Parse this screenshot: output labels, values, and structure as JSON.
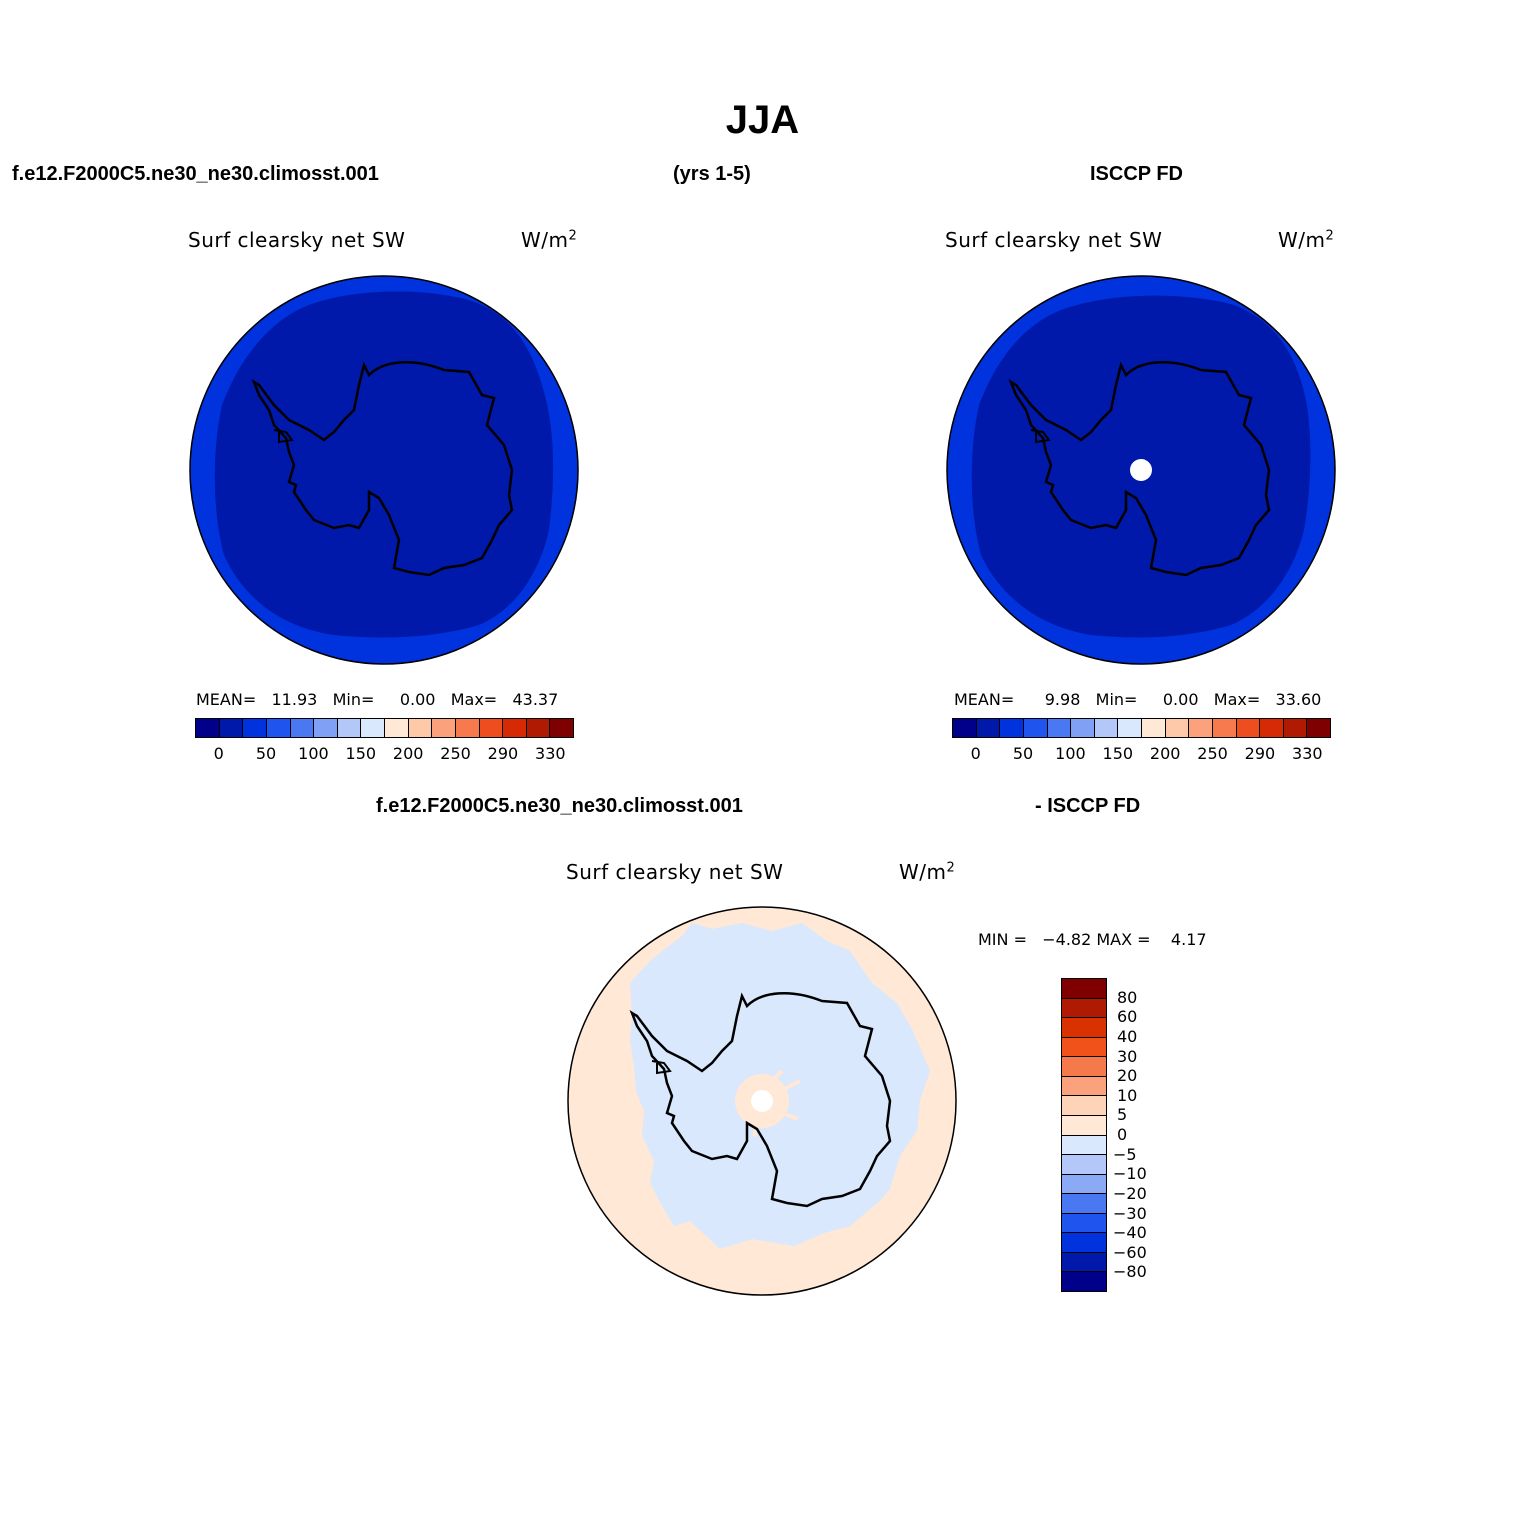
{
  "title": "JJA",
  "header": {
    "case_name": "f.e12.F2000C5.ne30_ne30.climosst.001",
    "years": "(yrs 1-5)",
    "obs_name": "ISCCP FD"
  },
  "panels": {
    "left": {
      "variable": "Surf clearsky net SW",
      "units_base": "W/m",
      "units_exp": "2",
      "mean_label": "MEAN=",
      "mean": "11.93",
      "min_label": "Min=",
      "min": "0.00",
      "max_label": "Max=",
      "max": "43.37"
    },
    "right": {
      "variable": "Surf clearsky net SW",
      "units_base": "W/m",
      "units_exp": "2",
      "mean_label": "MEAN=",
      "mean": "9.98",
      "min_label": "Min=",
      "min": "0.00",
      "max_label": "Max=",
      "max": "33.60"
    },
    "diff": {
      "title_left": "f.e12.F2000C5.ne30_ne30.climosst.001",
      "title_right": "- ISCCP FD",
      "variable": "Surf clearsky net SW",
      "units_base": "W/m",
      "units_exp": "2",
      "min_label": "MIN =",
      "min": "−4.82",
      "max_label": "MAX =",
      "max": "4.17"
    }
  },
  "colorbar_main": {
    "colors": [
      "#00008b",
      "#0019aa",
      "#0033dd",
      "#1f55ee",
      "#4a78f2",
      "#7fa0f5",
      "#b3c8f8",
      "#d9e8fc",
      "#ffe8d5",
      "#fdc9a8",
      "#fba27c",
      "#f77a4f",
      "#ee4d20",
      "#d62a06",
      "#b01a02",
      "#7f0000"
    ],
    "ticks": [
      "0",
      "50",
      "100",
      "150",
      "200",
      "250",
      "290",
      "330"
    ]
  },
  "colorbar_diff": {
    "colors": [
      "#7f0000",
      "#b01a02",
      "#d93200",
      "#f0521a",
      "#f47a4c",
      "#fba27c",
      "#fdd4b8",
      "#ffe8d5",
      "#d9e8fc",
      "#b3c8f8",
      "#8aaaf5",
      "#4a78f2",
      "#1f55ee",
      "#0033dd",
      "#0019aa",
      "#00008b"
    ],
    "ticks": [
      "80",
      "60",
      "40",
      "30",
      "20",
      "10",
      "5",
      "0",
      "−5",
      "−10",
      "−20",
      "−30",
      "−40",
      "−60",
      "−80"
    ]
  },
  "map_colors": {
    "abs_outer": "#0033dd",
    "abs_inner": "#0019aa",
    "diff_outer": "#ffe8d5",
    "diff_inner": "#d9e8fc",
    "missing": "#ffffff"
  }
}
